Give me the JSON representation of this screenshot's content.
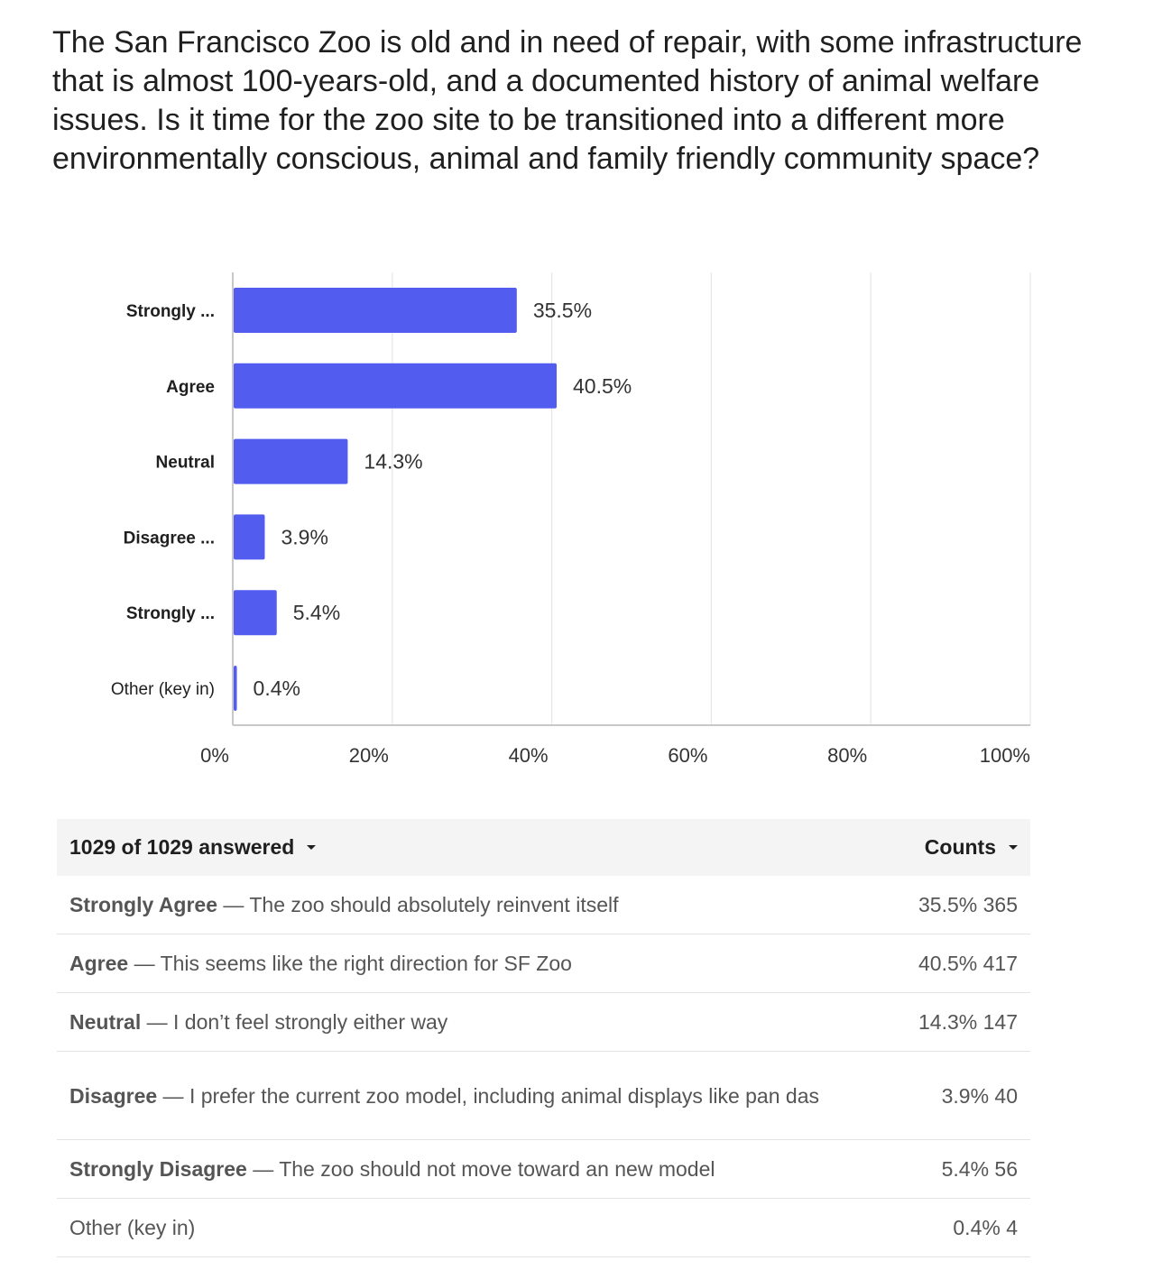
{
  "question": "The San Francisco Zoo is old and in need of repair, with some infrastructure that is almost 100-years-old, and a documented history of animal welfare issues. Is it time for the zoo site to be transitioned into a different more environmentally conscious, animal and family friendly community space?",
  "chart_data": {
    "type": "bar",
    "orientation": "horizontal",
    "categories": [
      "Strongly ...",
      "Agree",
      "Neutral",
      "Disagree ...",
      "Strongly ...",
      "Other (key in)"
    ],
    "values": [
      35.5,
      40.5,
      14.3,
      3.9,
      5.4,
      0.4
    ],
    "data_labels": [
      "35.5%",
      "40.5%",
      "14.3%",
      "3.9%",
      "5.4%",
      "0.4%"
    ],
    "xlim": [
      0,
      100
    ],
    "xticks": [
      0,
      20,
      40,
      60,
      80,
      100
    ],
    "xtick_labels": [
      "0%",
      "20%",
      "40%",
      "60%",
      "80%",
      "100%"
    ],
    "grid": true,
    "bar_color": "#525cef"
  },
  "table": {
    "answered_label": "1029 of 1029 answered",
    "counts_label": "Counts",
    "rows": [
      {
        "bold": "Strongly Agree",
        "text": " — The zoo should absolutely reinvent itself",
        "value": "35.5% 365"
      },
      {
        "bold": "Agree",
        "text": " — This seems like the right direction for SF Zoo",
        "value": "40.5% 417"
      },
      {
        "bold": "Neutral",
        "text": " — I don’t feel strongly either way",
        "value": "14.3% 147"
      },
      {
        "bold": "Disagree",
        "text": " — I prefer the current zoo model, including animal displays like pan das",
        "value": "3.9% 40"
      },
      {
        "bold": "Strongly Disagree",
        "text": " — The zoo should not move toward an new model",
        "value": "5.4% 56"
      },
      {
        "bold": "",
        "text": "Other (key in)",
        "value": "0.4% 4"
      }
    ]
  }
}
